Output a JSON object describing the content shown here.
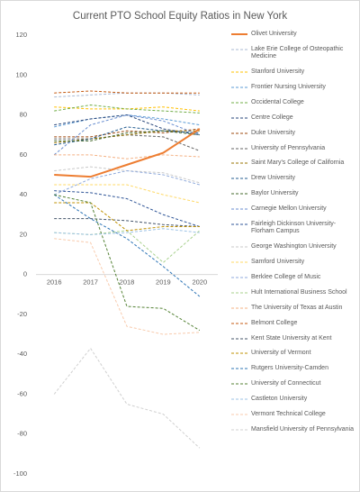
{
  "chart_data": {
    "type": "line",
    "title": "Current PTO School Equity Ratios in New York",
    "categories": [
      "2016",
      "2017",
      "2018",
      "2019",
      "2020"
    ],
    "ylim": [
      -100,
      120
    ],
    "yticks": [
      -100,
      -80,
      -60,
      -40,
      -20,
      0,
      20,
      40,
      60,
      80,
      100,
      120
    ],
    "legend": "right",
    "series": [
      {
        "name": "Olivet University",
        "color": "#ed7d31",
        "dashed": false,
        "values": [
          50,
          49,
          55,
          61,
          73
        ]
      },
      {
        "name": "Lake Erie College of Osteopathic Medicine",
        "color": "#a9b9d3",
        "dashed": true,
        "values": [
          89,
          90,
          91,
          91,
          90
        ]
      },
      {
        "name": "Stanford University",
        "color": "#ffc000",
        "dashed": true,
        "values": [
          84,
          83,
          83,
          84,
          82
        ]
      },
      {
        "name": "Frontier Nursing University",
        "color": "#5b9bd5",
        "dashed": true,
        "values": [
          74,
          78,
          80,
          78,
          75
        ]
      },
      {
        "name": "Occidental College",
        "color": "#70ad47",
        "dashed": true,
        "values": [
          82,
          85,
          83,
          82,
          81
        ]
      },
      {
        "name": "Centre College",
        "color": "#264478",
        "dashed": true,
        "values": [
          75,
          78,
          80,
          73,
          70
        ]
      },
      {
        "name": "Duke University",
        "color": "#9e480e",
        "dashed": true,
        "values": [
          69,
          69,
          72,
          71,
          73
        ]
      },
      {
        "name": "University of Pennsylvania",
        "color": "#636363",
        "dashed": true,
        "values": [
          68,
          68,
          70,
          69,
          62
        ]
      },
      {
        "name": "Saint Mary's College of California",
        "color": "#997300",
        "dashed": true,
        "values": [
          66,
          68,
          70,
          72,
          72
        ]
      },
      {
        "name": "Drew University",
        "color": "#255e91",
        "dashed": true,
        "values": [
          65,
          68,
          74,
          72,
          71
        ]
      },
      {
        "name": "Baylor University",
        "color": "#43682b",
        "dashed": true,
        "values": [
          67,
          67,
          71,
          72,
          70
        ]
      },
      {
        "name": "Carnegie Mellon University",
        "color": "#698ed0",
        "dashed": true,
        "values": [
          60,
          75,
          80,
          77,
          70
        ]
      },
      {
        "name": "Fairleigh Dickinson University-Florham Campus",
        "color": "#2f5597",
        "dashed": true,
        "values": [
          42,
          41,
          38,
          30,
          24
        ]
      },
      {
        "name": "George Washington University",
        "color": "#c9c9c9",
        "dashed": true,
        "values": [
          52,
          54,
          52,
          51,
          46
        ]
      },
      {
        "name": "Samford University",
        "color": "#ffd966",
        "dashed": true,
        "values": [
          45,
          45,
          45,
          40,
          36
        ]
      },
      {
        "name": "Berklee College of Music",
        "color": "#8faadc",
        "dashed": true,
        "values": [
          40,
          48,
          52,
          50,
          45
        ]
      },
      {
        "name": "Hult International Business School",
        "color": "#a9d18e",
        "dashed": true,
        "values": [
          21,
          20,
          22,
          6,
          22
        ]
      },
      {
        "name": "The University of Texas at Austin",
        "color": "#f4b183",
        "dashed": true,
        "values": [
          60,
          60,
          58,
          60,
          59
        ]
      },
      {
        "name": "Belmont College",
        "color": "#c55a11",
        "dashed": true,
        "values": [
          91,
          92,
          91,
          91,
          91
        ]
      },
      {
        "name": "Kent State University at Kent",
        "color": "#44546a",
        "dashed": true,
        "values": [
          28,
          28,
          27,
          25,
          24
        ]
      },
      {
        "name": "University of Vermont",
        "color": "#bf9000",
        "dashed": true,
        "values": [
          36,
          36,
          22,
          24,
          24
        ]
      },
      {
        "name": "Rutgers University-Camden",
        "color": "#2e75b6",
        "dashed": true,
        "values": [
          40,
          28,
          18,
          4,
          -11
        ]
      },
      {
        "name": "University of Connecticut",
        "color": "#548235",
        "dashed": true,
        "values": [
          40,
          36,
          -16,
          -17,
          -28
        ]
      },
      {
        "name": "Castleton University",
        "color": "#9dc3e6",
        "dashed": true,
        "values": [
          21,
          20,
          21,
          23,
          21
        ]
      },
      {
        "name": "Vermont Technical College",
        "color": "#f8cbad",
        "dashed": true,
        "values": [
          18,
          16,
          -26,
          -30,
          -29
        ]
      },
      {
        "name": "Mansfield University of Pennsylvania",
        "color": "#d0d0d0",
        "dashed": true,
        "values": [
          -60,
          -37,
          -65,
          -70,
          -87
        ]
      }
    ]
  }
}
